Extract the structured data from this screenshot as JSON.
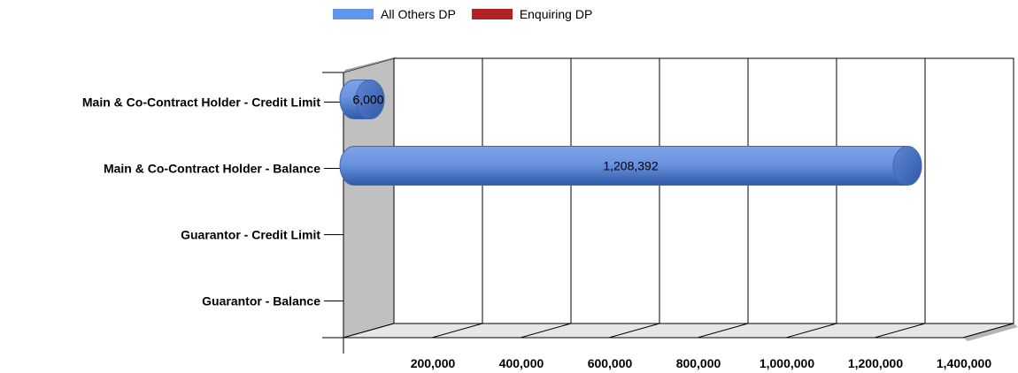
{
  "chart_data": {
    "type": "bar",
    "orientation": "horizontal",
    "style": "3d-cylinder",
    "categories": [
      "Main & Co-Contract Holder - Credit Limit",
      "Main & Co-Contract Holder - Balance",
      "Guarantor - Credit Limit",
      "Guarantor - Balance"
    ],
    "series": [
      {
        "name": "All Others DP",
        "color": "#6495ED",
        "values": [
          6000,
          1208392,
          null,
          null
        ]
      },
      {
        "name": "Enquiring DP",
        "color": "#B22222",
        "values": [
          null,
          null,
          null,
          null
        ]
      }
    ],
    "data_labels": [
      "6,000",
      "1,208,392",
      "",
      ""
    ],
    "x_ticks": [
      200000,
      400000,
      600000,
      800000,
      1000000,
      1200000,
      1400000
    ],
    "x_tick_labels": [
      "200,000",
      "400,000",
      "600,000",
      "800,000",
      "1,000,000",
      "1,200,000",
      "1,400,000"
    ],
    "xlim": [
      0,
      1400000
    ],
    "grid": true,
    "legend_position": "top"
  }
}
